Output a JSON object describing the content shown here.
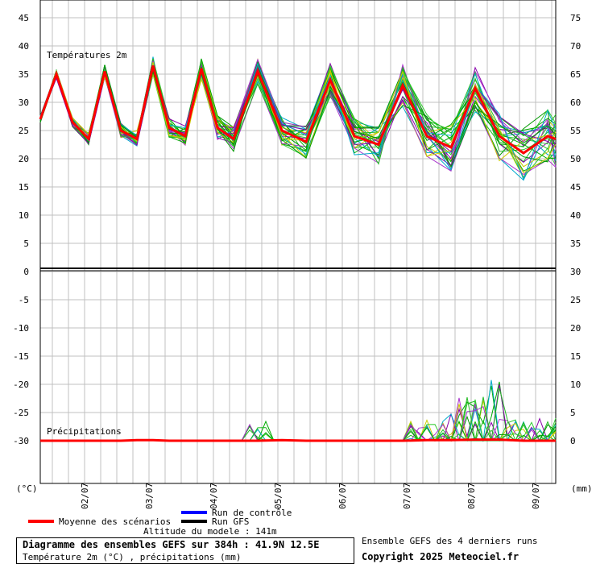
{
  "units_left": "(°C)",
  "units_right": "(mm)",
  "panels": {
    "temp_label": "Températures 2m",
    "precip_label": "Précipitations"
  },
  "left_axis_labels": [
    "45",
    "40",
    "35",
    "30",
    "25",
    "20",
    "15",
    "10",
    "5",
    "0",
    "-5",
    "-10",
    "-15",
    "-20",
    "-25",
    "-30"
  ],
  "right_axis_top_labels": [
    "75",
    "70",
    "65",
    "60",
    "55",
    "50",
    "45",
    "40",
    "35",
    "30"
  ],
  "right_axis_bottom_labels": [
    "25",
    "20",
    "15",
    "10",
    "5",
    "0"
  ],
  "legend": {
    "mean": "Moyenne des scénarios",
    "control": "Run de contrôle",
    "gfs": "Run GFS",
    "altitude": "Altitude du modele : 141m"
  },
  "footer": {
    "title": "Diagramme des ensembles GEFS sur 384h : 41.9N 12.5E",
    "subtitle": "Température 2m (°C) , précipitations (mm)",
    "ensemble_note": "Ensemble GEFS des 4 derniers runs",
    "copyright": "Copyright 2025 Meteociel.fr"
  },
  "colors": {
    "mean": "#ff0000",
    "control": "#0000ff",
    "gfs": "#000000",
    "members": [
      "#00aa00",
      "#22bb22",
      "#8800aa",
      "#00aacc",
      "#cccc00",
      "#009900",
      "#33cc33",
      "#aa33cc"
    ],
    "grid": "#c0c0c0"
  },
  "chart_data": {
    "type": "line",
    "x_tick_labels": [
      "02/07",
      "03/07",
      "04/07",
      "05/07",
      "06/07",
      "07/07",
      "08/07",
      "09/07"
    ],
    "x_hours": [
      0,
      12,
      24,
      36,
      48,
      60,
      72,
      84,
      96,
      108,
      120,
      132,
      144,
      162,
      180,
      198,
      216,
      234,
      252,
      270,
      288,
      306,
      324,
      342,
      360,
      378,
      384
    ],
    "series": [
      {
        "name": "Moyenne des scénarios",
        "values": [
          27,
          35,
          26.5,
          23.5,
          35.5,
          25,
          23.5,
          36.5,
          25.5,
          24,
          36,
          25.5,
          23.5,
          35.5,
          25,
          23,
          34,
          24,
          22.5,
          33,
          24,
          22,
          32.5,
          24,
          21,
          24,
          23.5
        ]
      },
      {
        "name": "Moyenne des scénarios (précipitations)",
        "values": [
          0,
          0,
          0,
          0,
          0,
          0,
          0.1,
          0.1,
          0,
          0,
          0,
          0,
          0,
          0,
          0.1,
          0,
          0,
          0,
          0,
          0,
          0.1,
          0.1,
          0.2,
          0.2,
          0,
          0,
          0
        ]
      }
    ],
    "temp_ylim": [
      0,
      45
    ],
    "precip_ylim": [
      0,
      30
    ],
    "right_axis_ylim": [
      30,
      75
    ],
    "grid": true
  }
}
